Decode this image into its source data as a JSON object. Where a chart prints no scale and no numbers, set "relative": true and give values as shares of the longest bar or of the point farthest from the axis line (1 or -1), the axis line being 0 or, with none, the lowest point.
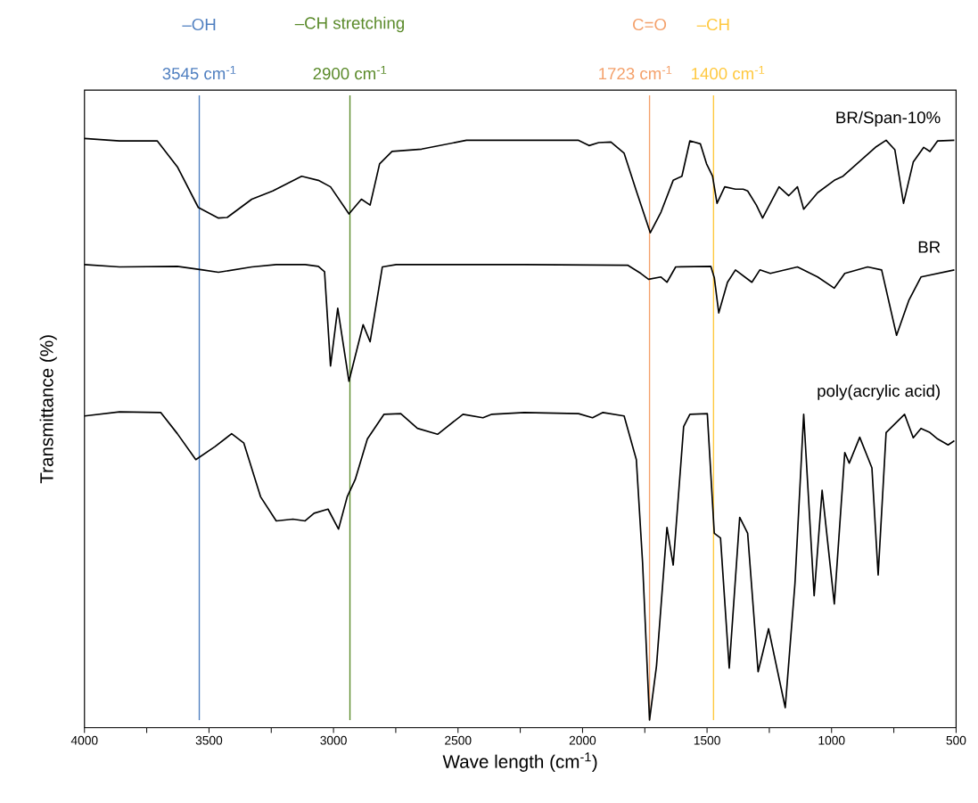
{
  "chart_data": {
    "type": "line",
    "relative": true,
    "xlabel": "Wave length (cm$^{-1}$)",
    "ylabel": "Transmittance (%)",
    "xlim": [
      4000,
      500
    ],
    "xticks": [
      4000,
      {
        "value": 3750,
        "label": null
      },
      3500,
      {
        "value": 3250,
        "label": null
      },
      3000,
      {
        "value": 2750,
        "label": null
      },
      2500,
      {
        "value": 2250,
        "label": null
      },
      2000,
      {
        "value": 1750,
        "label": null
      },
      1500,
      {
        "value": 1250,
        "label": null
      },
      1000,
      {
        "value": 750,
        "label": null
      },
      500
    ],
    "series": [
      {
        "name": "BR/Span-10%",
        "color": "#000000",
        "x": [
          4000,
          3859,
          3708,
          3627,
          3543,
          3462,
          3427,
          3328,
          3244,
          3128,
          3061,
          3012,
          2938,
          2888,
          2853,
          2815,
          2765,
          2646,
          2466,
          2234,
          2016,
          1974,
          1935,
          1886,
          1833,
          1784,
          1728,
          1685,
          1636,
          1601,
          1569,
          1527,
          1502,
          1478,
          1460,
          1429,
          1386,
          1355,
          1337,
          1302,
          1277,
          1211,
          1172,
          1137,
          1112,
          1056,
          989,
          954,
          824,
          781,
          746,
          711,
          672,
          630,
          605,
          574,
          507
        ],
        "values": [
          1.0,
          0.996,
          0.996,
          0.952,
          0.883,
          0.865,
          0.866,
          0.897,
          0.911,
          0.936,
          0.929,
          0.918,
          0.872,
          0.897,
          0.887,
          0.957,
          0.978,
          0.982,
          0.997,
          0.997,
          0.997,
          0.988,
          0.993,
          0.994,
          0.975,
          0.911,
          0.84,
          0.875,
          0.929,
          0.936,
          0.996,
          0.991,
          0.957,
          0.936,
          0.89,
          0.918,
          0.914,
          0.914,
          0.911,
          0.887,
          0.865,
          0.918,
          0.903,
          0.918,
          0.88,
          0.908,
          0.929,
          0.936,
          0.985,
          0.997,
          0.981,
          0.89,
          0.96,
          0.985,
          0.978,
          0.996,
          0.997
        ]
      },
      {
        "name": "BR",
        "color": "#000000",
        "x": [
          4000,
          3859,
          3627,
          3525,
          3462,
          3328,
          3230,
          3114,
          3061,
          3036,
          3012,
          2983,
          2938,
          2881,
          2853,
          2804,
          2748,
          2234,
          1819,
          1766,
          1735,
          1685,
          1661,
          1626,
          1485,
          1471,
          1453,
          1418,
          1386,
          1320,
          1288,
          1246,
          1137,
          1056,
          989,
          947,
          855,
          799,
          739,
          690,
          641,
          507
        ],
        "values": [
          0.786,
          0.782,
          0.783,
          0.777,
          0.773,
          0.782,
          0.786,
          0.786,
          0.783,
          0.774,
          0.614,
          0.712,
          0.588,
          0.684,
          0.655,
          0.782,
          0.786,
          0.786,
          0.785,
          0.771,
          0.761,
          0.765,
          0.756,
          0.782,
          0.783,
          0.764,
          0.704,
          0.756,
          0.777,
          0.756,
          0.777,
          0.771,
          0.782,
          0.765,
          0.746,
          0.771,
          0.782,
          0.777,
          0.666,
          0.725,
          0.765,
          0.777
        ]
      },
      {
        "name": "poly(acrylic acid)",
        "color": "#000000",
        "x": [
          4000,
          3859,
          3694,
          3627,
          3553,
          3476,
          3409,
          3360,
          3293,
          3230,
          3163,
          3114,
          3078,
          3022,
          2980,
          2945,
          2913,
          2864,
          2797,
          2730,
          2663,
          2582,
          2480,
          2400,
          2364,
          2234,
          2016,
          1960,
          1918,
          1833,
          1784,
          1759,
          1731,
          1703,
          1661,
          1636,
          1594,
          1569,
          1499,
          1471,
          1446,
          1411,
          1369,
          1337,
          1295,
          1253,
          1186,
          1147,
          1112,
          1070,
          1038,
          989,
          947,
          929,
          887,
          838,
          813,
          781,
          707,
          672,
          641,
          605,
          574,
          532,
          507
        ],
        "values": [
          0.529,
          0.536,
          0.535,
          0.499,
          0.455,
          0.477,
          0.499,
          0.483,
          0.392,
          0.351,
          0.354,
          0.351,
          0.364,
          0.371,
          0.337,
          0.392,
          0.421,
          0.49,
          0.532,
          0.533,
          0.508,
          0.498,
          0.532,
          0.526,
          0.532,
          0.535,
          0.533,
          0.526,
          0.535,
          0.529,
          0.455,
          0.281,
          0.013,
          0.105,
          0.34,
          0.276,
          0.511,
          0.532,
          0.533,
          0.33,
          0.322,
          0.101,
          0.357,
          0.33,
          0.095,
          0.168,
          0.034,
          0.245,
          0.532,
          0.224,
          0.403,
          0.21,
          0.467,
          0.449,
          0.493,
          0.441,
          0.259,
          0.501,
          0.532,
          0.492,
          0.508,
          0.501,
          0.49,
          0.48,
          0.487
        ]
      }
    ],
    "ref_lines": [
      {
        "axis": "x",
        "value": 3539,
        "label": "–OH",
        "color": "#4f7fc0"
      },
      {
        "axis": "x",
        "value": 2934,
        "label": "–CH stretching",
        "color": "#5a8a2a"
      },
      {
        "axis": "x",
        "value": 1731,
        "label": "C=O",
        "color": "#f4a06a"
      },
      {
        "axis": "x",
        "value": 1474,
        "label": "–CH",
        "color": "#ffc83d"
      }
    ],
    "annotations": [
      "3545 cm$^{-1}$",
      "2900 cm$^{-1}$",
      "1723 cm$^{-1}$",
      "1400 cm$^{-1}$"
    ]
  }
}
